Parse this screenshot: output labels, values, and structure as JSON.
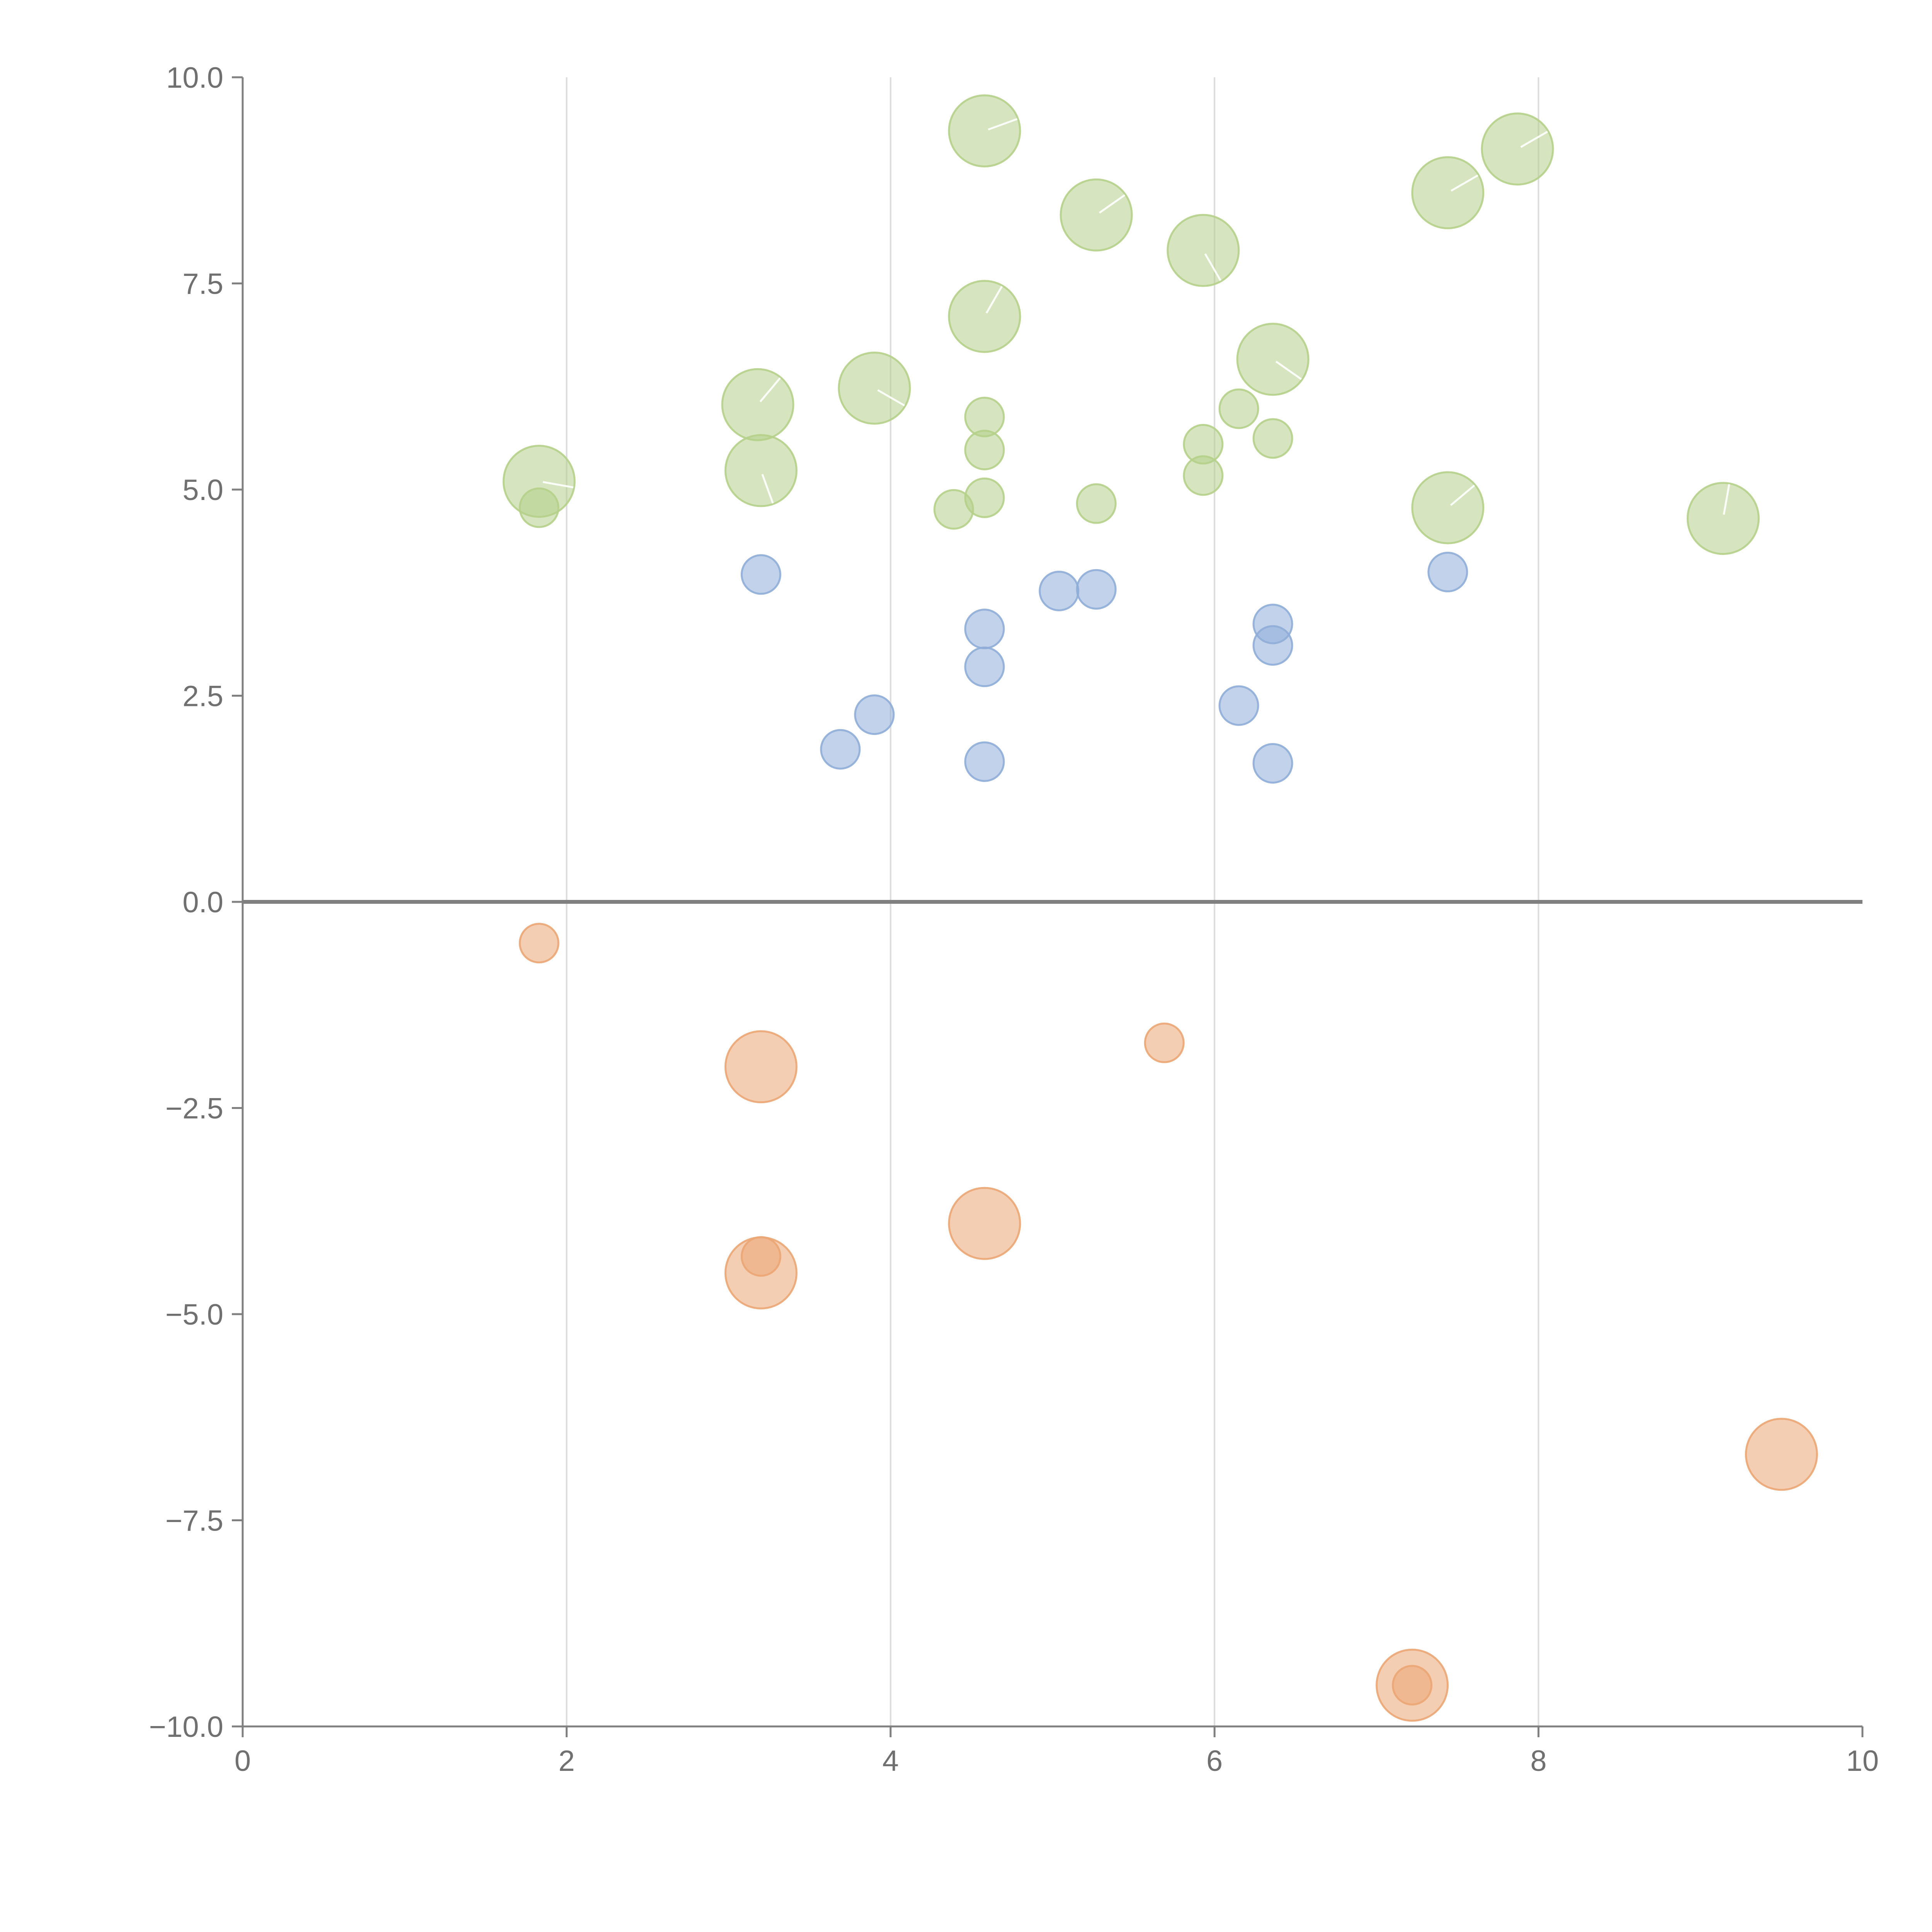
{
  "chart_data": {
    "type": "scatter",
    "title": "",
    "xlabel": "",
    "ylabel": "",
    "xlim": [
      0,
      10
    ],
    "ylim": [
      -10,
      10
    ],
    "grid": "vertical",
    "legend": "none",
    "x_ticks": [
      "0",
      "2",
      "4",
      "6",
      "8",
      "10"
    ],
    "y_ticks": [
      "10.0",
      "7.5",
      "5.0",
      "2.5",
      "0.0",
      "−2.5",
      "−5.0",
      "−7.5",
      "−10.0"
    ],
    "x_tick_values": [
      0,
      2,
      4,
      6,
      8,
      10
    ],
    "y_tick_values": [
      10,
      7.5,
      5,
      2.5,
      0,
      -2.5,
      -5,
      -7.5,
      -10
    ],
    "colors": {
      "green": "#b5d08a",
      "blue": "#8fadd8",
      "orange": "#eba674",
      "axis": "#808080",
      "grid": "#dcdcdc"
    },
    "series": [
      {
        "name": "green",
        "color": "#b5d08a",
        "points": [
          {
            "x": 4.58,
            "y": 9.35,
            "size": 3
          },
          {
            "x": 5.27,
            "y": 8.33,
            "size": 3
          },
          {
            "x": 5.93,
            "y": 7.9,
            "size": 3
          },
          {
            "x": 7.44,
            "y": 8.6,
            "size": 3
          },
          {
            "x": 7.87,
            "y": 9.13,
            "size": 3
          },
          {
            "x": 4.58,
            "y": 7.1,
            "size": 3
          },
          {
            "x": 3.9,
            "y": 6.23,
            "size": 3
          },
          {
            "x": 3.18,
            "y": 6.03,
            "size": 3
          },
          {
            "x": 6.36,
            "y": 6.58,
            "size": 3
          },
          {
            "x": 1.83,
            "y": 5.1,
            "size": 3
          },
          {
            "x": 3.2,
            "y": 5.23,
            "size": 3
          },
          {
            "x": 7.44,
            "y": 4.78,
            "size": 3
          },
          {
            "x": 9.14,
            "y": 4.65,
            "size": 3
          },
          {
            "x": 4.58,
            "y": 5.88,
            "size": 1
          },
          {
            "x": 4.58,
            "y": 5.48,
            "size": 1
          },
          {
            "x": 4.58,
            "y": 4.9,
            "size": 1
          },
          {
            "x": 4.39,
            "y": 4.76,
            "size": 1
          },
          {
            "x": 5.27,
            "y": 4.83,
            "size": 1
          },
          {
            "x": 5.93,
            "y": 5.55,
            "size": 1
          },
          {
            "x": 5.93,
            "y": 5.17,
            "size": 1
          },
          {
            "x": 6.15,
            "y": 5.98,
            "size": 1
          },
          {
            "x": 6.36,
            "y": 5.62,
            "size": 1
          },
          {
            "x": 1.83,
            "y": 4.78,
            "size": 1
          }
        ]
      },
      {
        "name": "blue",
        "color": "#8fadd8",
        "points": [
          {
            "x": 3.2,
            "y": 3.97,
            "size": 1
          },
          {
            "x": 5.04,
            "y": 3.77,
            "size": 1
          },
          {
            "x": 5.27,
            "y": 3.79,
            "size": 1
          },
          {
            "x": 7.44,
            "y": 4.0,
            "size": 1
          },
          {
            "x": 4.58,
            "y": 3.31,
            "size": 1
          },
          {
            "x": 4.58,
            "y": 2.85,
            "size": 1
          },
          {
            "x": 6.36,
            "y": 3.37,
            "size": 1
          },
          {
            "x": 6.36,
            "y": 3.11,
            "size": 1
          },
          {
            "x": 6.15,
            "y": 2.38,
            "size": 1
          },
          {
            "x": 3.9,
            "y": 2.27,
            "size": 1
          },
          {
            "x": 3.69,
            "y": 1.85,
            "size": 1
          },
          {
            "x": 4.58,
            "y": 1.7,
            "size": 1
          },
          {
            "x": 6.36,
            "y": 1.68,
            "size": 1
          }
        ]
      },
      {
        "name": "orange",
        "color": "#eba674",
        "points": [
          {
            "x": 1.83,
            "y": -0.5,
            "size": 1
          },
          {
            "x": 5.69,
            "y": -1.71,
            "size": 1
          },
          {
            "x": 3.2,
            "y": -2.0,
            "size": 3
          },
          {
            "x": 4.58,
            "y": -3.9,
            "size": 3
          },
          {
            "x": 3.2,
            "y": -4.5,
            "size": 3
          },
          {
            "x": 3.2,
            "y": -4.3,
            "size": 1
          },
          {
            "x": 9.5,
            "y": -6.7,
            "size": 3
          },
          {
            "x": 7.22,
            "y": -9.5,
            "size": 3
          },
          {
            "x": 7.22,
            "y": -9.5,
            "size": 1
          }
        ]
      }
    ]
  }
}
